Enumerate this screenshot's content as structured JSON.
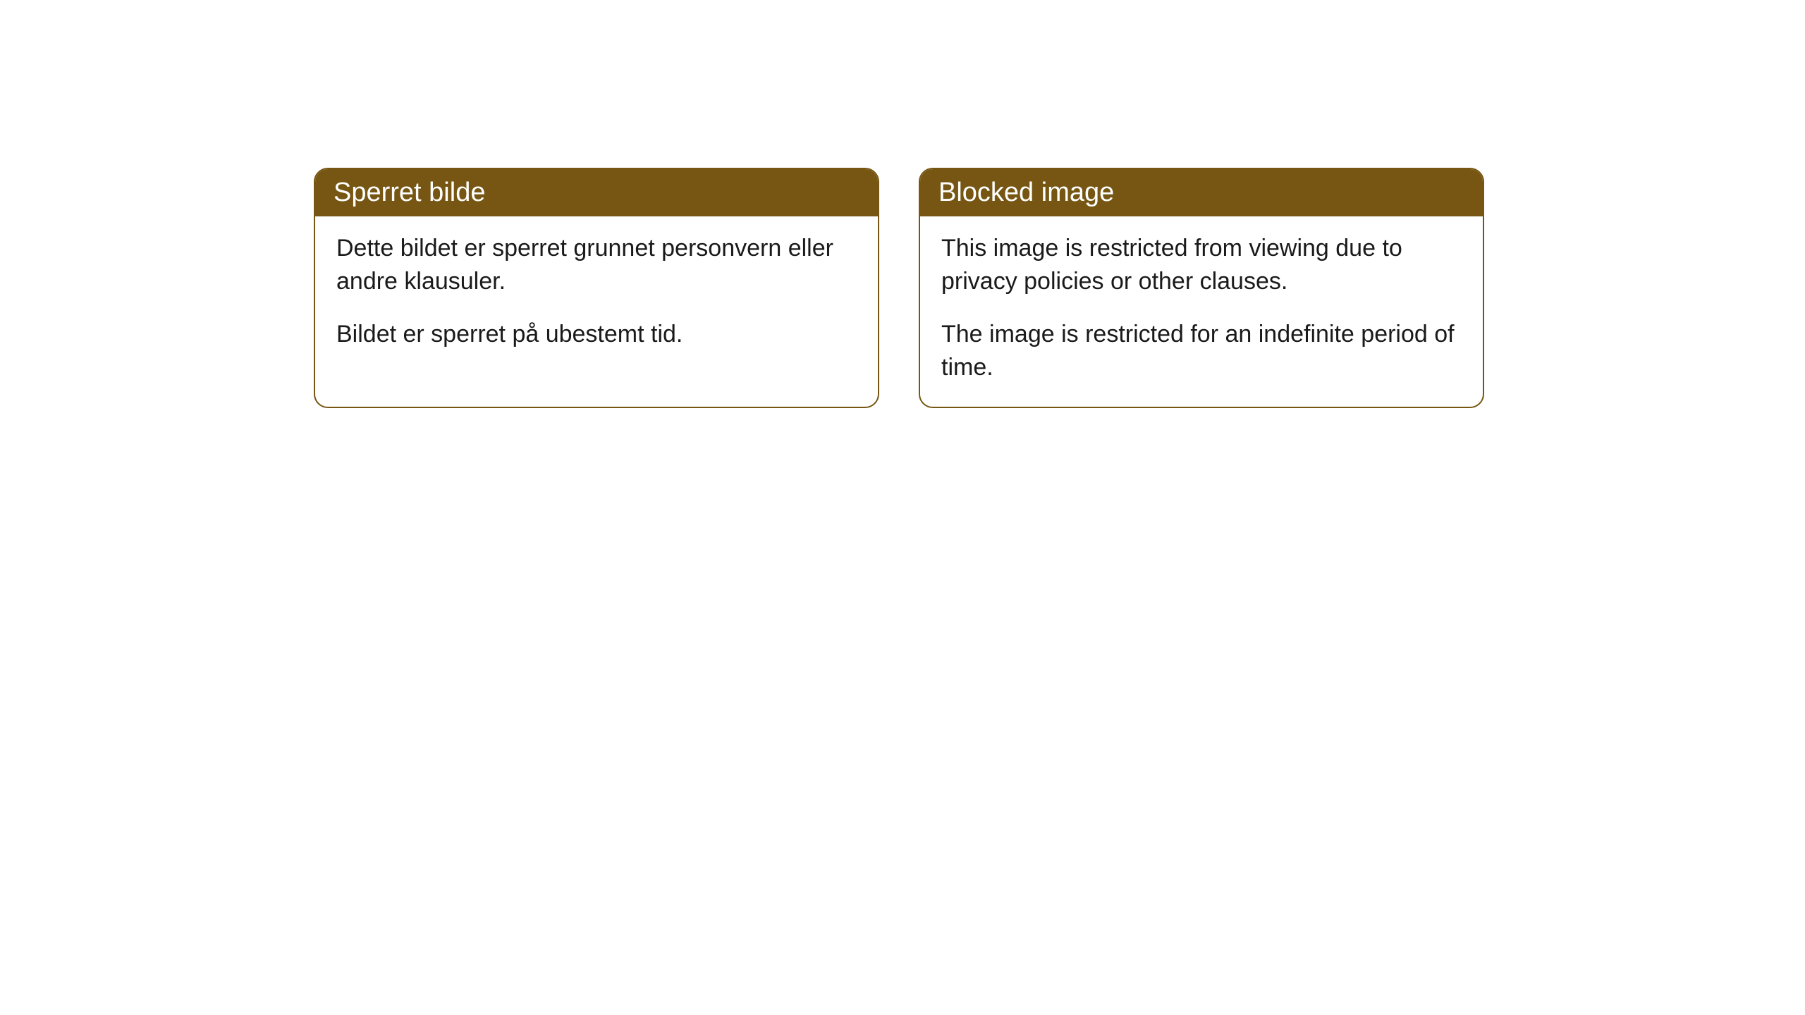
{
  "cards": [
    {
      "title": "Sperret bilde",
      "paragraph1": "Dette bildet er sperret grunnet personvern eller andre klausuler.",
      "paragraph2": "Bildet er sperret på ubestemt tid."
    },
    {
      "title": "Blocked image",
      "paragraph1": "This image is restricted from viewing due to privacy policies or other clauses.",
      "paragraph2": "The image is restricted for an indefinite period of time."
    }
  ],
  "styling": {
    "header_bg_color": "#765612",
    "header_text_color": "#ffffff",
    "border_color": "#765612",
    "body_bg_color": "#ffffff",
    "body_text_color": "#1a1a1a",
    "border_radius": 20,
    "header_fontsize": 38,
    "body_fontsize": 34
  }
}
